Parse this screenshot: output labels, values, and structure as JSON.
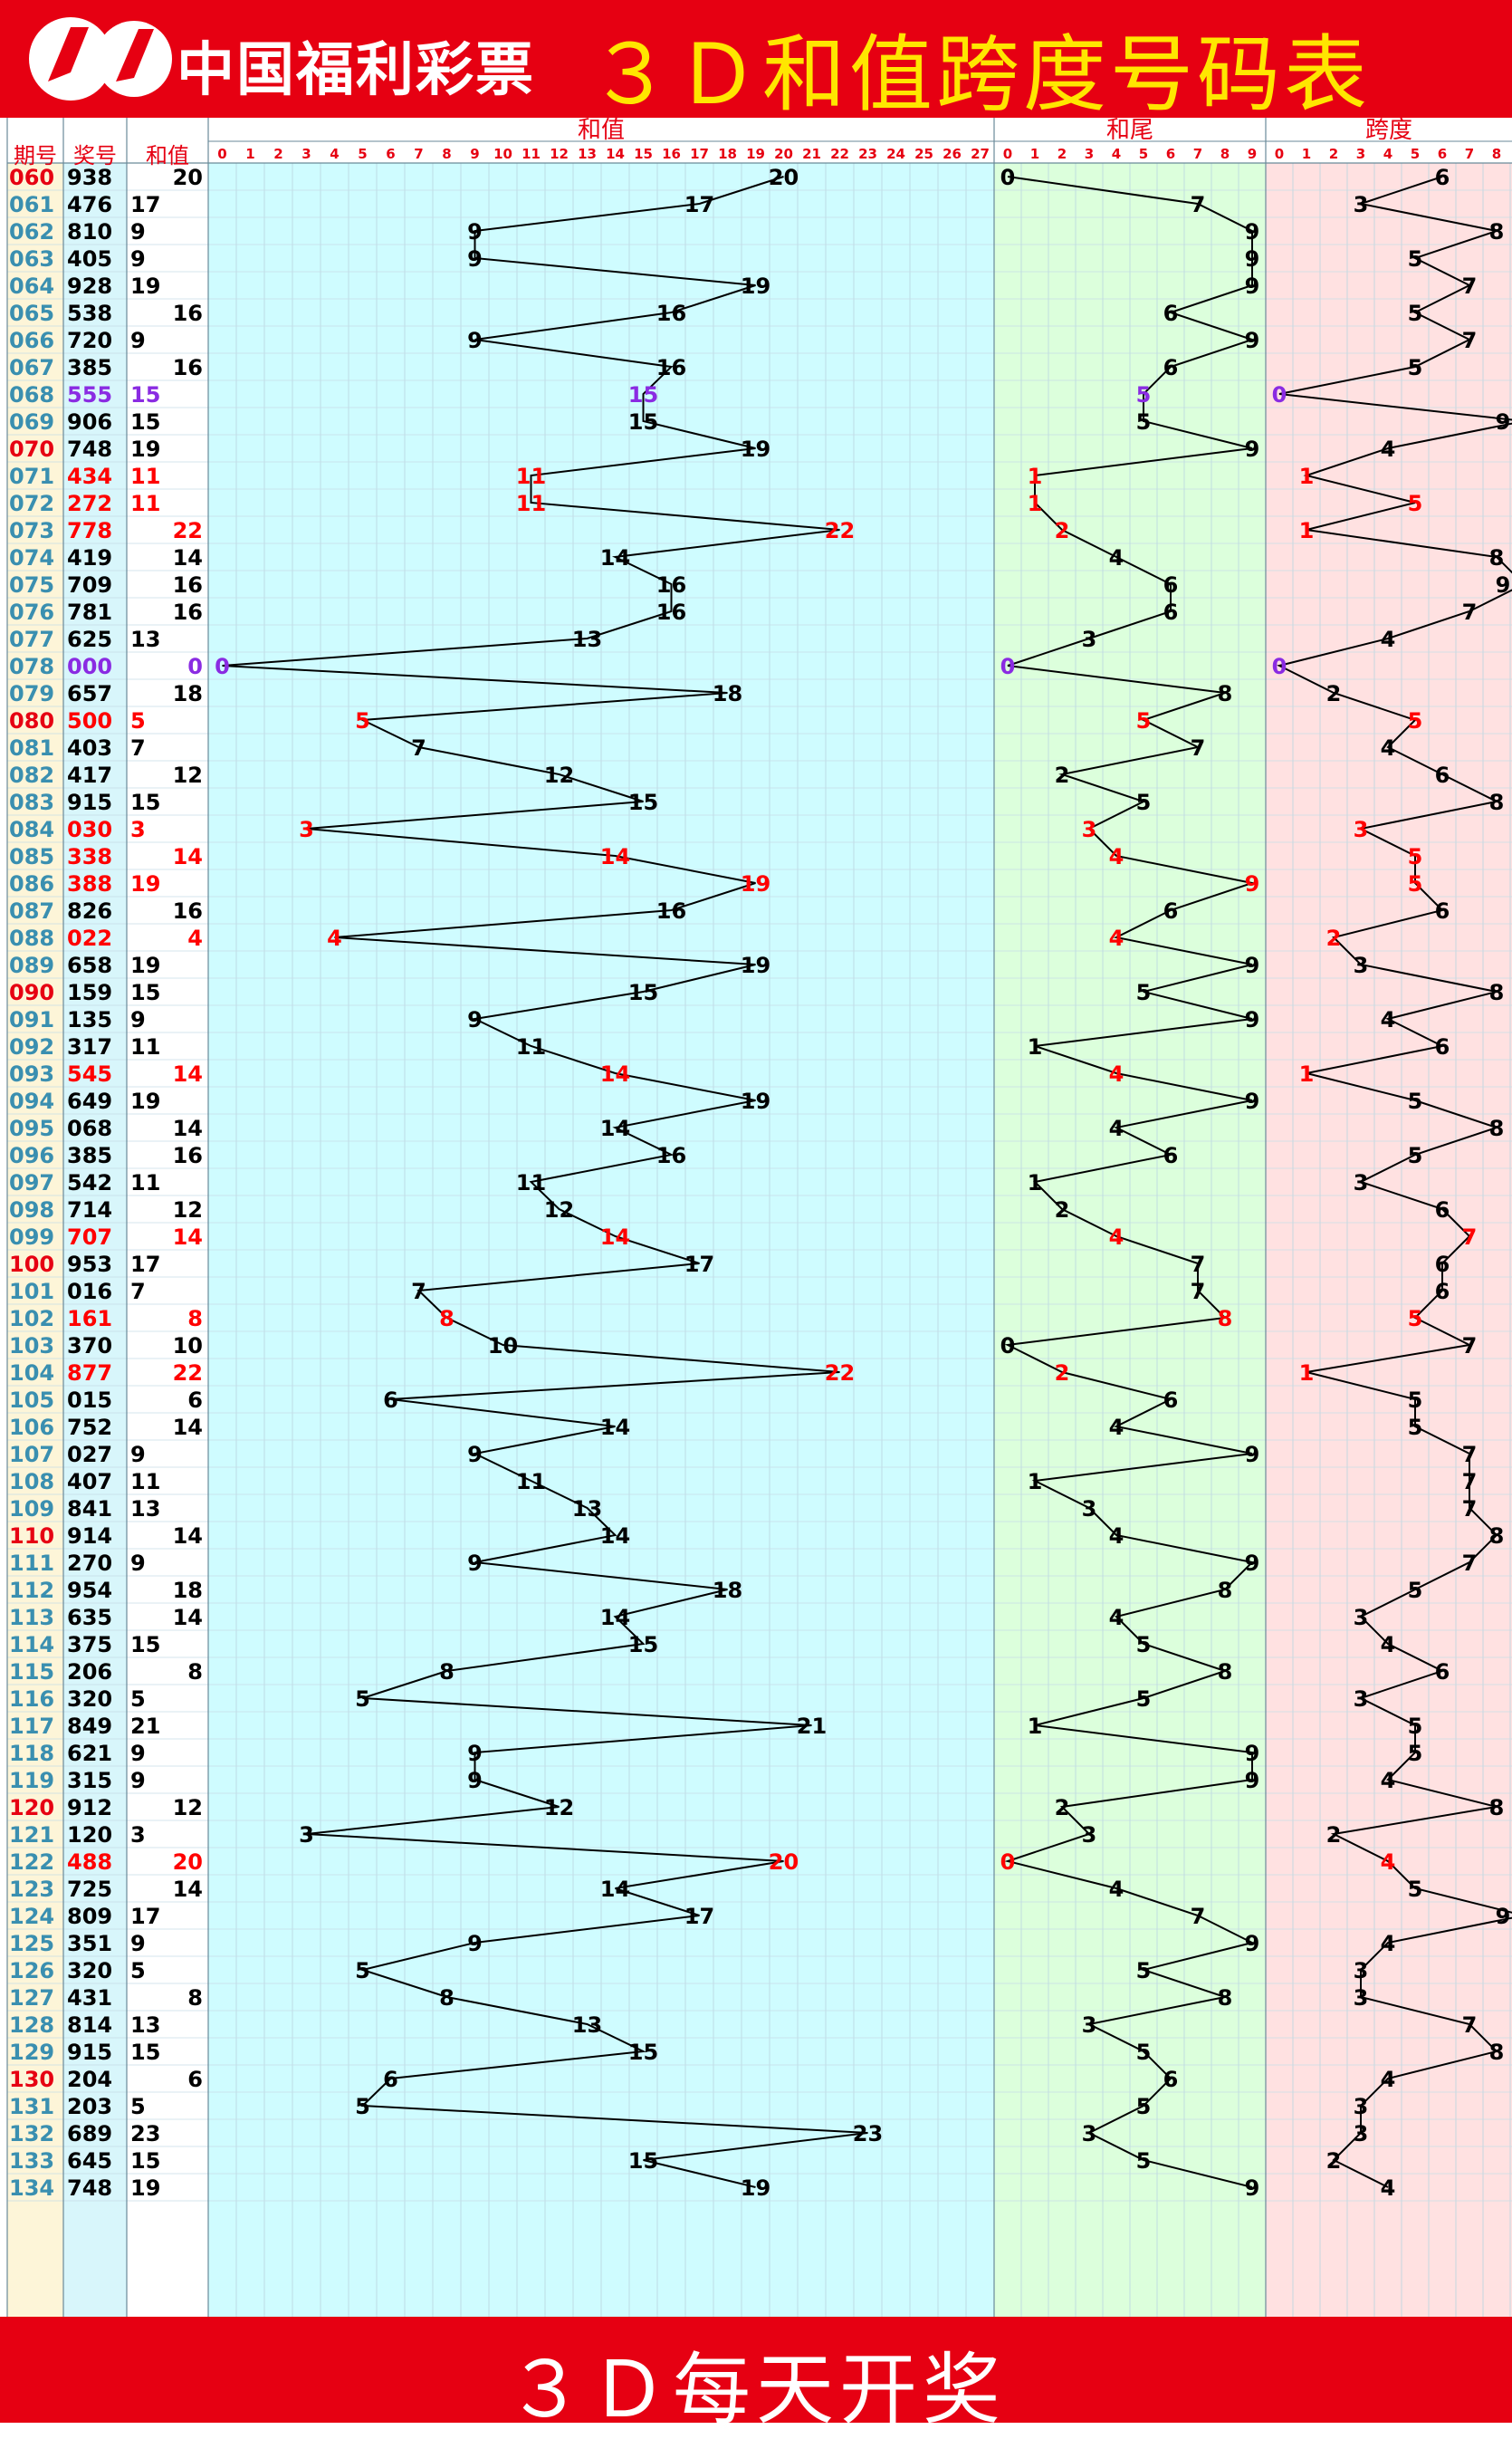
{
  "header": {
    "logo_text": "中国福利彩票",
    "title": "３Ｄ和值跨度号码表"
  },
  "footer": {
    "text": "３Ｄ每天开奖"
  },
  "colors": {
    "brand_red": "#e60012",
    "title_yellow": "#ffe600",
    "sum_panel_bg": "#cffcff",
    "tail_panel_bg": "#dcffdc",
    "span_panel_bg": "#ffe1e1",
    "issue_column_bg": "#fdf5d8",
    "number_column_bg": "#d8f6fb",
    "red_mark": "#ff0000",
    "purple_mark": "#8a2be2"
  },
  "columns": {
    "issue": "期号",
    "number": "奖号",
    "sum": "和值",
    "section_sum": "和值",
    "section_tail": "和尾",
    "section_span": "跨度"
  },
  "chart_data": {
    "type": "line",
    "sum_axis": [
      0,
      27
    ],
    "tail_axis": [
      0,
      9
    ],
    "span_axis": [
      0,
      9
    ],
    "rows": [
      {
        "issue": "060",
        "number": "938",
        "sum": 20,
        "tail": 0,
        "span": 6,
        "mark": "",
        "hl": true
      },
      {
        "issue": "061",
        "number": "476",
        "sum": 17,
        "tail": 7,
        "span": 3,
        "mark": "",
        "hl": false
      },
      {
        "issue": "062",
        "number": "810",
        "sum": 9,
        "tail": 9,
        "span": 8,
        "mark": "",
        "hl": false
      },
      {
        "issue": "063",
        "number": "405",
        "sum": 9,
        "tail": 9,
        "span": 5,
        "mark": "",
        "hl": false
      },
      {
        "issue": "064",
        "number": "928",
        "sum": 19,
        "tail": 9,
        "span": 7,
        "mark": "",
        "hl": false
      },
      {
        "issue": "065",
        "number": "538",
        "sum": 16,
        "tail": 6,
        "span": 5,
        "mark": "",
        "hl": false
      },
      {
        "issue": "066",
        "number": "720",
        "sum": 9,
        "tail": 9,
        "span": 7,
        "mark": "",
        "hl": false
      },
      {
        "issue": "067",
        "number": "385",
        "sum": 16,
        "tail": 6,
        "span": 5,
        "mark": "",
        "hl": false
      },
      {
        "issue": "068",
        "number": "555",
        "sum": 15,
        "tail": 5,
        "span": 0,
        "mark": "purple",
        "hl": false
      },
      {
        "issue": "069",
        "number": "906",
        "sum": 15,
        "tail": 5,
        "span": 9,
        "mark": "",
        "hl": false
      },
      {
        "issue": "070",
        "number": "748",
        "sum": 19,
        "tail": 9,
        "span": 4,
        "mark": "",
        "hl": true
      },
      {
        "issue": "071",
        "number": "434",
        "sum": 11,
        "tail": 1,
        "span": 1,
        "mark": "red",
        "hl": false
      },
      {
        "issue": "072",
        "number": "272",
        "sum": 11,
        "tail": 1,
        "span": 5,
        "mark": "red",
        "hl": false
      },
      {
        "issue": "073",
        "number": "778",
        "sum": 22,
        "tail": 2,
        "span": 1,
        "mark": "red",
        "hl": false
      },
      {
        "issue": "074",
        "number": "419",
        "sum": 14,
        "tail": 4,
        "span": 8,
        "mark": "",
        "hl": false
      },
      {
        "issue": "075",
        "number": "709",
        "sum": 16,
        "tail": 6,
        "span": 9,
        "mark": "",
        "hl": false
      },
      {
        "issue": "076",
        "number": "781",
        "sum": 16,
        "tail": 6,
        "span": 7,
        "mark": "",
        "hl": false
      },
      {
        "issue": "077",
        "number": "625",
        "sum": 13,
        "tail": 3,
        "span": 4,
        "mark": "",
        "hl": false
      },
      {
        "issue": "078",
        "number": "000",
        "sum": 0,
        "tail": 0,
        "span": 0,
        "mark": "purple",
        "hl": false
      },
      {
        "issue": "079",
        "number": "657",
        "sum": 18,
        "tail": 8,
        "span": 2,
        "mark": "",
        "hl": false
      },
      {
        "issue": "080",
        "number": "500",
        "sum": 5,
        "tail": 5,
        "span": 5,
        "mark": "red",
        "hl": true
      },
      {
        "issue": "081",
        "number": "403",
        "sum": 7,
        "tail": 7,
        "span": 4,
        "mark": "",
        "hl": false
      },
      {
        "issue": "082",
        "number": "417",
        "sum": 12,
        "tail": 2,
        "span": 6,
        "mark": "",
        "hl": false
      },
      {
        "issue": "083",
        "number": "915",
        "sum": 15,
        "tail": 5,
        "span": 8,
        "mark": "",
        "hl": false
      },
      {
        "issue": "084",
        "number": "030",
        "sum": 3,
        "tail": 3,
        "span": 3,
        "mark": "red",
        "hl": false
      },
      {
        "issue": "085",
        "number": "338",
        "sum": 14,
        "tail": 4,
        "span": 5,
        "mark": "red",
        "hl": false
      },
      {
        "issue": "086",
        "number": "388",
        "sum": 19,
        "tail": 9,
        "span": 5,
        "mark": "red",
        "hl": false
      },
      {
        "issue": "087",
        "number": "826",
        "sum": 16,
        "tail": 6,
        "span": 6,
        "mark": "",
        "hl": false
      },
      {
        "issue": "088",
        "number": "022",
        "sum": 4,
        "tail": 4,
        "span": 2,
        "mark": "red",
        "hl": false
      },
      {
        "issue": "089",
        "number": "658",
        "sum": 19,
        "tail": 9,
        "span": 3,
        "mark": "",
        "hl": false
      },
      {
        "issue": "090",
        "number": "159",
        "sum": 15,
        "tail": 5,
        "span": 8,
        "mark": "",
        "hl": true
      },
      {
        "issue": "091",
        "number": "135",
        "sum": 9,
        "tail": 9,
        "span": 4,
        "mark": "",
        "hl": false
      },
      {
        "issue": "092",
        "number": "317",
        "sum": 11,
        "tail": 1,
        "span": 6,
        "mark": "",
        "hl": false
      },
      {
        "issue": "093",
        "number": "545",
        "sum": 14,
        "tail": 4,
        "span": 1,
        "mark": "red",
        "hl": false
      },
      {
        "issue": "094",
        "number": "649",
        "sum": 19,
        "tail": 9,
        "span": 5,
        "mark": "",
        "hl": false
      },
      {
        "issue": "095",
        "number": "068",
        "sum": 14,
        "tail": 4,
        "span": 8,
        "mark": "",
        "hl": false
      },
      {
        "issue": "096",
        "number": "385",
        "sum": 16,
        "tail": 6,
        "span": 5,
        "mark": "",
        "hl": false
      },
      {
        "issue": "097",
        "number": "542",
        "sum": 11,
        "tail": 1,
        "span": 3,
        "mark": "",
        "hl": false
      },
      {
        "issue": "098",
        "number": "714",
        "sum": 12,
        "tail": 2,
        "span": 6,
        "mark": "",
        "hl": false
      },
      {
        "issue": "099",
        "number": "707",
        "sum": 14,
        "tail": 4,
        "span": 7,
        "mark": "red",
        "hl": false
      },
      {
        "issue": "100",
        "number": "953",
        "sum": 17,
        "tail": 7,
        "span": 6,
        "mark": "",
        "hl": true
      },
      {
        "issue": "101",
        "number": "016",
        "sum": 7,
        "tail": 7,
        "span": 6,
        "mark": "",
        "hl": false
      },
      {
        "issue": "102",
        "number": "161",
        "sum": 8,
        "tail": 8,
        "span": 5,
        "mark": "red",
        "hl": false
      },
      {
        "issue": "103",
        "number": "370",
        "sum": 10,
        "tail": 0,
        "span": 7,
        "mark": "",
        "hl": false
      },
      {
        "issue": "104",
        "number": "877",
        "sum": 22,
        "tail": 2,
        "span": 1,
        "mark": "red",
        "hl": false
      },
      {
        "issue": "105",
        "number": "015",
        "sum": 6,
        "tail": 6,
        "span": 5,
        "mark": "",
        "hl": false
      },
      {
        "issue": "106",
        "number": "752",
        "sum": 14,
        "tail": 4,
        "span": 5,
        "mark": "",
        "hl": false
      },
      {
        "issue": "107",
        "number": "027",
        "sum": 9,
        "tail": 9,
        "span": 7,
        "mark": "",
        "hl": false
      },
      {
        "issue": "108",
        "number": "407",
        "sum": 11,
        "tail": 1,
        "span": 7,
        "mark": "",
        "hl": false
      },
      {
        "issue": "109",
        "number": "841",
        "sum": 13,
        "tail": 3,
        "span": 7,
        "mark": "",
        "hl": false
      },
      {
        "issue": "110",
        "number": "914",
        "sum": 14,
        "tail": 4,
        "span": 8,
        "mark": "",
        "hl": true
      },
      {
        "issue": "111",
        "number": "270",
        "sum": 9,
        "tail": 9,
        "span": 7,
        "mark": "",
        "hl": false
      },
      {
        "issue": "112",
        "number": "954",
        "sum": 18,
        "tail": 8,
        "span": 5,
        "mark": "",
        "hl": false
      },
      {
        "issue": "113",
        "number": "635",
        "sum": 14,
        "tail": 4,
        "span": 3,
        "mark": "",
        "hl": false
      },
      {
        "issue": "114",
        "number": "375",
        "sum": 15,
        "tail": 5,
        "span": 4,
        "mark": "",
        "hl": false
      },
      {
        "issue": "115",
        "number": "206",
        "sum": 8,
        "tail": 8,
        "span": 6,
        "mark": "",
        "hl": false
      },
      {
        "issue": "116",
        "number": "320",
        "sum": 5,
        "tail": 5,
        "span": 3,
        "mark": "",
        "hl": false
      },
      {
        "issue": "117",
        "number": "849",
        "sum": 21,
        "tail": 1,
        "span": 5,
        "mark": "",
        "hl": false
      },
      {
        "issue": "118",
        "number": "621",
        "sum": 9,
        "tail": 9,
        "span": 5,
        "mark": "",
        "hl": false
      },
      {
        "issue": "119",
        "number": "315",
        "sum": 9,
        "tail": 9,
        "span": 4,
        "mark": "",
        "hl": false
      },
      {
        "issue": "120",
        "number": "912",
        "sum": 12,
        "tail": 2,
        "span": 8,
        "mark": "",
        "hl": true
      },
      {
        "issue": "121",
        "number": "120",
        "sum": 3,
        "tail": 3,
        "span": 2,
        "mark": "",
        "hl": false
      },
      {
        "issue": "122",
        "number": "488",
        "sum": 20,
        "tail": 0,
        "span": 4,
        "mark": "red",
        "hl": false
      },
      {
        "issue": "123",
        "number": "725",
        "sum": 14,
        "tail": 4,
        "span": 5,
        "mark": "",
        "hl": false
      },
      {
        "issue": "124",
        "number": "809",
        "sum": 17,
        "tail": 7,
        "span": 9,
        "mark": "",
        "hl": false
      },
      {
        "issue": "125",
        "number": "351",
        "sum": 9,
        "tail": 9,
        "span": 4,
        "mark": "",
        "hl": false
      },
      {
        "issue": "126",
        "number": "320",
        "sum": 5,
        "tail": 5,
        "span": 3,
        "mark": "",
        "hl": false
      },
      {
        "issue": "127",
        "number": "431",
        "sum": 8,
        "tail": 8,
        "span": 3,
        "mark": "",
        "hl": false
      },
      {
        "issue": "128",
        "number": "814",
        "sum": 13,
        "tail": 3,
        "span": 7,
        "mark": "",
        "hl": false
      },
      {
        "issue": "129",
        "number": "915",
        "sum": 15,
        "tail": 5,
        "span": 8,
        "mark": "",
        "hl": false
      },
      {
        "issue": "130",
        "number": "204",
        "sum": 6,
        "tail": 6,
        "span": 4,
        "mark": "",
        "hl": true
      },
      {
        "issue": "131",
        "number": "203",
        "sum": 5,
        "tail": 5,
        "span": 3,
        "mark": "",
        "hl": false
      },
      {
        "issue": "132",
        "number": "689",
        "sum": 23,
        "tail": 3,
        "span": 3,
        "mark": "",
        "hl": false
      },
      {
        "issue": "133",
        "number": "645",
        "sum": 15,
        "tail": 5,
        "span": 2,
        "mark": "",
        "hl": false
      },
      {
        "issue": "134",
        "number": "748",
        "sum": 19,
        "tail": 9,
        "span": 4,
        "mark": "",
        "hl": false
      }
    ]
  }
}
